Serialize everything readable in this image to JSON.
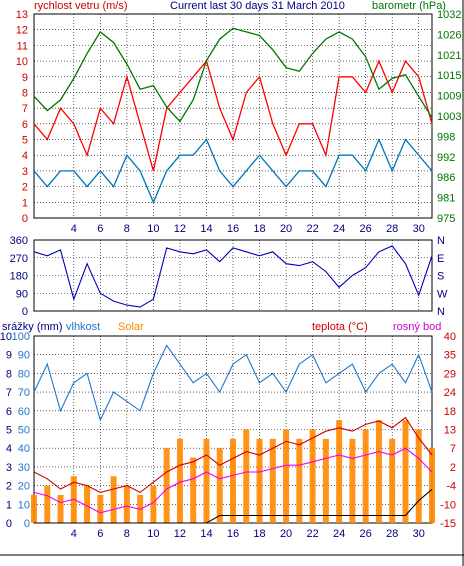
{
  "colors": {
    "wind": "#cc0000",
    "wind_gust": "#ff0000",
    "wind_avg": "#0077bb",
    "pressure": "#007700",
    "direction": "#0000bb",
    "humidity": "#2277cc",
    "solar": "#ff8800",
    "temperature": "#cc0000",
    "dewpoint": "#ee00ee",
    "rain": "#000000",
    "grid": "#000000"
  },
  "chart_data": [
    {
      "type": "line",
      "title": "Current last 30 days 31 March 2010",
      "left_axis_label": "rychlost vetru (m/s)",
      "right_axis_label": "barometr (hPa)",
      "x_ticks": [
        "4",
        "6",
        "8",
        "10",
        "12",
        "14",
        "16",
        "18",
        "20",
        "22",
        "24",
        "26",
        "28",
        "30"
      ],
      "y_left_ticks": [
        "0",
        "1",
        "2",
        "3",
        "4",
        "5",
        "6",
        "7",
        "8",
        "9",
        "10",
        "11",
        "12",
        "13"
      ],
      "y_right_ticks": [
        "975",
        "981",
        "986",
        "992",
        "998",
        "1003",
        "1009",
        "1015",
        "1021",
        "1026",
        "1032"
      ],
      "xlim": [
        1,
        31
      ],
      "ylim_left": [
        0,
        13
      ],
      "ylim_right": [
        975,
        1032
      ],
      "series": [
        {
          "key": "wind_gust",
          "axis": "left",
          "x": [
            1,
            2,
            3,
            4,
            5,
            6,
            7,
            8,
            9,
            10,
            11,
            12,
            13,
            14,
            15,
            16,
            17,
            18,
            19,
            20,
            21,
            22,
            23,
            24,
            25,
            26,
            27,
            28,
            29,
            30,
            31
          ],
          "values": [
            6,
            5,
            7,
            6,
            4,
            7,
            6,
            9,
            6,
            3,
            7,
            8,
            9,
            10,
            7,
            5,
            8,
            9,
            6,
            4,
            6,
            6,
            4,
            9,
            9,
            8,
            10,
            8,
            10,
            9,
            6
          ]
        },
        {
          "key": "wind_avg",
          "axis": "left",
          "x": [
            1,
            2,
            3,
            4,
            5,
            6,
            7,
            8,
            9,
            10,
            11,
            12,
            13,
            14,
            15,
            16,
            17,
            18,
            19,
            20,
            21,
            22,
            23,
            24,
            25,
            26,
            27,
            28,
            29,
            30,
            31
          ],
          "values": [
            3,
            2,
            3,
            3,
            2,
            3,
            2,
            4,
            3,
            1,
            3,
            4,
            4,
            5,
            3,
            2,
            3,
            4,
            3,
            2,
            3,
            3,
            2,
            4,
            4,
            3,
            5,
            3,
            5,
            4,
            3
          ]
        },
        {
          "key": "pressure",
          "axis": "right",
          "x": [
            1,
            2,
            3,
            4,
            5,
            6,
            7,
            8,
            9,
            10,
            11,
            12,
            13,
            14,
            15,
            16,
            17,
            18,
            19,
            20,
            21,
            22,
            23,
            24,
            25,
            26,
            27,
            28,
            29,
            30,
            31
          ],
          "values": [
            1009,
            1005,
            1008,
            1014,
            1021,
            1027,
            1024,
            1018,
            1011,
            1012,
            1006,
            1002,
            1008,
            1019,
            1025,
            1028,
            1027,
            1026,
            1022,
            1017,
            1016,
            1021,
            1025,
            1027,
            1025,
            1020,
            1011,
            1014,
            1015,
            1009,
            1003
          ]
        }
      ]
    },
    {
      "type": "line",
      "y_left_ticks": [
        "0",
        "90",
        "180",
        "270",
        "360"
      ],
      "y_right_ticks": [
        "N",
        "W",
        "S",
        "E",
        "N"
      ],
      "x_ticks": [
        "4",
        "6",
        "8",
        "10",
        "12",
        "14",
        "16",
        "18",
        "20",
        "22",
        "24",
        "26",
        "28",
        "30"
      ],
      "xlim": [
        1,
        31
      ],
      "ylim": [
        0,
        360
      ],
      "series": [
        {
          "key": "direction",
          "x": [
            1,
            2,
            3,
            4,
            5,
            6,
            7,
            8,
            9,
            10,
            11,
            12,
            13,
            14,
            15,
            16,
            17,
            18,
            19,
            20,
            21,
            22,
            23,
            24,
            25,
            26,
            27,
            28,
            29,
            30,
            31
          ],
          "values": [
            300,
            280,
            310,
            60,
            240,
            90,
            50,
            30,
            20,
            60,
            320,
            300,
            290,
            310,
            250,
            320,
            300,
            280,
            300,
            240,
            230,
            250,
            200,
            120,
            180,
            220,
            300,
            330,
            240,
            80,
            280
          ]
        }
      ]
    },
    {
      "type": "line",
      "left_axis_labels": [
        "srážky (mm)",
        "vlhkost",
        "Solar"
      ],
      "right_axis_labels": [
        "teplota (°C)",
        "rosný bod"
      ],
      "x_ticks": [
        "4",
        "6",
        "8",
        "10",
        "12",
        "14",
        "16",
        "18",
        "20",
        "22",
        "24",
        "26",
        "28",
        "30"
      ],
      "y_rain_ticks": [
        "0",
        "1",
        "2",
        "3",
        "4",
        "5",
        "6",
        "7",
        "8",
        "9",
        "10"
      ],
      "y_humidity_ticks": [
        "0",
        "10",
        "20",
        "30",
        "40",
        "50",
        "60",
        "70",
        "80",
        "90",
        "100"
      ],
      "y_temp_ticks": [
        "-15",
        "-10",
        "-4",
        "2",
        "7",
        "13",
        "18",
        "24",
        "29",
        "35",
        "40"
      ],
      "xlim": [
        1,
        31
      ],
      "ylim_humidity": [
        0,
        100
      ],
      "ylim_temp": [
        -15,
        40
      ],
      "series": [
        {
          "key": "humidity",
          "x": [
            1,
            2,
            3,
            4,
            5,
            6,
            7,
            8,
            9,
            10,
            11,
            12,
            13,
            14,
            15,
            16,
            17,
            18,
            19,
            20,
            21,
            22,
            23,
            24,
            25,
            26,
            27,
            28,
            29,
            30,
            31
          ],
          "values": [
            70,
            85,
            60,
            75,
            80,
            55,
            70,
            65,
            60,
            80,
            95,
            85,
            75,
            80,
            70,
            85,
            90,
            75,
            80,
            70,
            85,
            90,
            75,
            80,
            85,
            70,
            80,
            85,
            75,
            90,
            70
          ]
        },
        {
          "key": "temperature",
          "x": [
            1,
            2,
            3,
            4,
            5,
            6,
            7,
            8,
            9,
            10,
            11,
            12,
            13,
            14,
            15,
            16,
            17,
            18,
            19,
            20,
            21,
            22,
            23,
            24,
            25,
            26,
            27,
            28,
            29,
            30,
            31
          ],
          "values": [
            0,
            -2,
            -5,
            -3,
            -4,
            -6,
            -5,
            -4,
            -6,
            -3,
            0,
            2,
            3,
            5,
            2,
            4,
            6,
            5,
            7,
            9,
            8,
            10,
            12,
            13,
            12,
            14,
            15,
            13,
            16,
            10,
            5
          ]
        },
        {
          "key": "dewpoint",
          "x": [
            1,
            2,
            3,
            4,
            5,
            6,
            7,
            8,
            9,
            10,
            11,
            12,
            13,
            14,
            15,
            16,
            17,
            18,
            19,
            20,
            21,
            22,
            23,
            24,
            25,
            26,
            27,
            28,
            29,
            30,
            31
          ],
          "values": [
            -6,
            -7,
            -9,
            -8,
            -10,
            -12,
            -11,
            -10,
            -11,
            -9,
            -5,
            -3,
            -2,
            0,
            -2,
            -1,
            0,
            0,
            1,
            2,
            2,
            3,
            4,
            5,
            4,
            5,
            6,
            5,
            7,
            4,
            0
          ]
        },
        {
          "key": "solar",
          "x": [
            1,
            2,
            3,
            4,
            5,
            6,
            7,
            8,
            9,
            10,
            11,
            12,
            13,
            14,
            15,
            16,
            17,
            18,
            19,
            20,
            21,
            22,
            23,
            24,
            25,
            26,
            27,
            28,
            29,
            30,
            31
          ],
          "values": [
            15,
            20,
            15,
            25,
            20,
            15,
            25,
            20,
            15,
            20,
            40,
            45,
            35,
            45,
            40,
            45,
            50,
            45,
            45,
            50,
            45,
            50,
            45,
            55,
            45,
            50,
            55,
            45,
            55,
            50,
            40
          ]
        },
        {
          "key": "rain",
          "x": [
            1,
            2,
            3,
            4,
            5,
            6,
            7,
            8,
            9,
            10,
            11,
            12,
            13,
            14,
            15,
            16,
            17,
            18,
            19,
            20,
            21,
            22,
            23,
            24,
            25,
            26,
            27,
            28,
            29,
            30,
            31
          ],
          "values": [
            0,
            0,
            0,
            0,
            0,
            0,
            0,
            0,
            0,
            0,
            0,
            0,
            0,
            0,
            0.4,
            0.4,
            0.4,
            0.4,
            0.4,
            0.4,
            0.4,
            0.4,
            0.4,
            0.4,
            0.4,
            0.4,
            0.4,
            0.4,
            0.4,
            1.2,
            1.8
          ]
        }
      ]
    }
  ]
}
